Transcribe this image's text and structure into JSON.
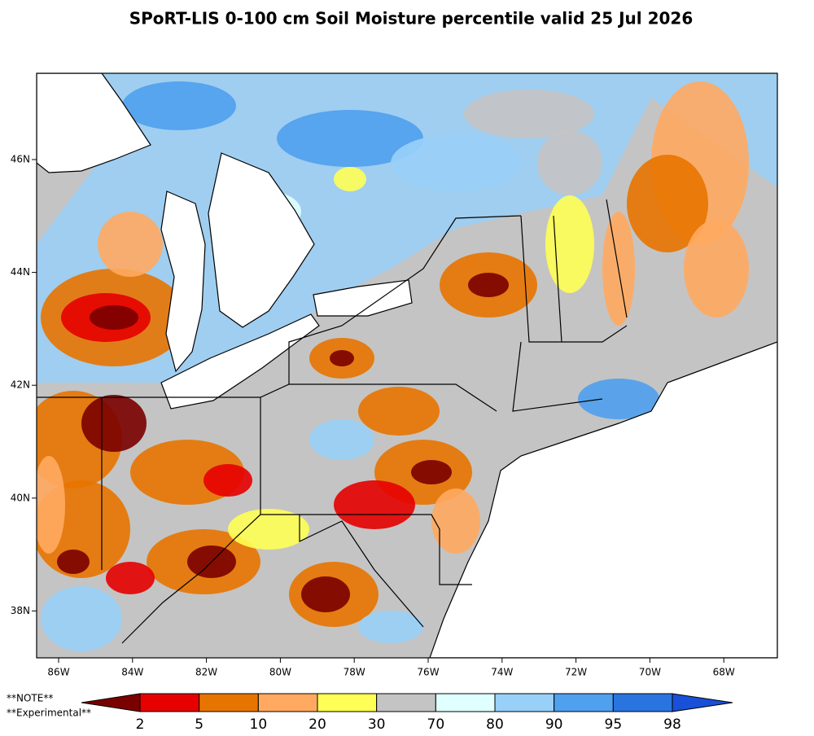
{
  "title": "SPoRT-LIS 0-100 cm Soil Moisture percentile valid 25 Jul 2026",
  "map": {
    "lon_labels": [
      "86W",
      "84W",
      "82W",
      "80W",
      "78W",
      "76W",
      "74W",
      "72W",
      "70W",
      "68W"
    ],
    "lat_labels": [
      "46N",
      "44N",
      "42N",
      "40N",
      "38N"
    ]
  },
  "colorbar": {
    "colors": [
      "#7a0000",
      "#e60000",
      "#e87400",
      "#ffaa60",
      "#ffff55",
      "#c4c4c4",
      "#e0ffff",
      "#99d0f8",
      "#4fa0ee",
      "#2a74e0",
      "#1850d8"
    ],
    "ticks": [
      2,
      5,
      10,
      20,
      30,
      70,
      80,
      90,
      95,
      98
    ]
  },
  "notes": [
    "**NOTE**",
    "**Experimental**"
  ]
}
